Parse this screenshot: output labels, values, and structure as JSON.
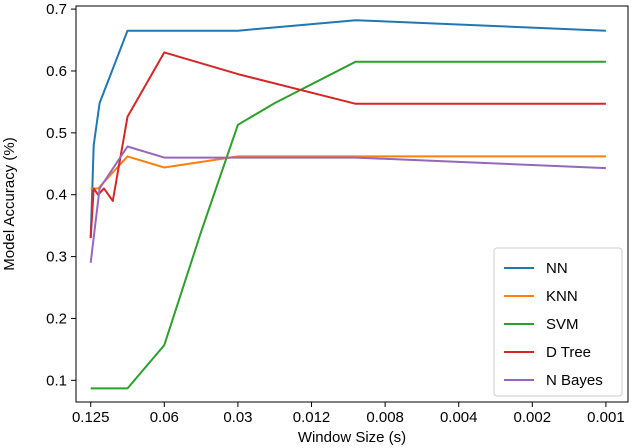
{
  "chart_data": {
    "type": "line",
    "title": "",
    "xlabel": "Window Size (s)",
    "ylabel": "Model Accuracy (%)",
    "x_ticks": [
      "0.125",
      "0.06",
      "0.03",
      "0.012",
      "0.008",
      "0.004",
      "0.002",
      "0.001"
    ],
    "y_ticks": [
      "0.1",
      "0.2",
      "0.3",
      "0.4",
      "0.5",
      "0.6",
      "0.7"
    ],
    "ylim": [
      0.065,
      0.705
    ],
    "xlim": [
      -0.2,
      7.3
    ],
    "x_scale": "categorical tick positions (non-uniform window sizes)",
    "grid": false,
    "legend_position": "bottom-right",
    "series": [
      {
        "name": "NN",
        "color": "#1f77b4",
        "x": [
          0,
          0.04,
          0.12,
          0.5,
          1.0,
          2.0,
          3.6,
          7.0
        ],
        "y": [
          0.33,
          0.48,
          0.548,
          0.665,
          0.665,
          0.665,
          0.682,
          0.665
        ]
      },
      {
        "name": "KNN",
        "color": "#ff7f0e",
        "x": [
          0,
          0.1,
          0.5,
          1.0,
          2.0,
          3.6,
          7.0
        ],
        "y": [
          0.41,
          0.41,
          0.462,
          0.444,
          0.462,
          0.462,
          0.462
        ]
      },
      {
        "name": "SVM",
        "color": "#2ca02c",
        "x": [
          0,
          0.5,
          1.0,
          1.5,
          2.0,
          2.5,
          3.6,
          7.0
        ],
        "y": [
          0.087,
          0.087,
          0.157,
          0.34,
          0.513,
          0.548,
          0.615,
          0.615
        ]
      },
      {
        "name": "D Tree",
        "color": "#d62728",
        "x": [
          0,
          0.04,
          0.1,
          0.18,
          0.3,
          0.5,
          1.0,
          2.0,
          3.6,
          7.0
        ],
        "y": [
          0.33,
          0.41,
          0.4,
          0.41,
          0.39,
          0.526,
          0.63,
          0.595,
          0.547,
          0.547
        ]
      },
      {
        "name": "N Bayes",
        "color": "#9467bd",
        "x": [
          0,
          0.06,
          0.12,
          0.5,
          1.0,
          2.0,
          3.6,
          7.0
        ],
        "y": [
          0.29,
          0.35,
          0.41,
          0.478,
          0.46,
          0.46,
          0.46,
          0.443
        ]
      }
    ]
  }
}
